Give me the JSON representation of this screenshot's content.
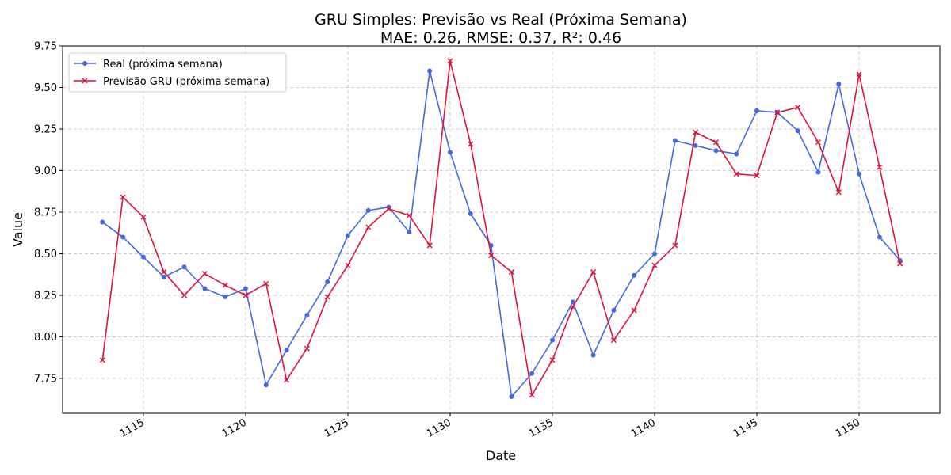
{
  "chart_data": {
    "type": "line",
    "title": "GRU Simples: Previsão vs Real (Próxima Semana)",
    "subtitle": "MAE: 0.26, RMSE: 0.37, R²: 0.46",
    "xlabel": "Date",
    "ylabel": "Value",
    "xlim": [
      1111.05,
      1153.95
    ],
    "ylim": [
      7.54,
      9.75
    ],
    "x_ticks": [
      1115,
      1120,
      1125,
      1130,
      1135,
      1140,
      1145,
      1150
    ],
    "x_tick_labels": [
      "1115",
      "1120",
      "1125",
      "1130",
      "1135",
      "1140",
      "1145",
      "1150"
    ],
    "y_ticks": [
      7.75,
      8.0,
      8.25,
      8.5,
      8.75,
      9.0,
      9.25,
      9.5,
      9.75
    ],
    "y_tick_labels": [
      "7.75",
      "8.00",
      "8.25",
      "8.50",
      "8.75",
      "9.00",
      "9.25",
      "9.50",
      "9.75"
    ],
    "grid": true,
    "legend_position": "top-left",
    "x": [
      1113,
      1114,
      1115,
      1116,
      1117,
      1118,
      1119,
      1120,
      1121,
      1122,
      1123,
      1124,
      1125,
      1126,
      1127,
      1128,
      1129,
      1130,
      1131,
      1132,
      1133,
      1134,
      1135,
      1136,
      1137,
      1138,
      1139,
      1140,
      1141,
      1142,
      1143,
      1144,
      1145,
      1146,
      1147,
      1148,
      1149,
      1150,
      1151,
      1152
    ],
    "series": [
      {
        "name": "Real (próxima semana)",
        "color": "#4169e1",
        "marker": "circle",
        "values": [
          8.69,
          8.6,
          8.48,
          8.36,
          8.42,
          8.29,
          8.24,
          8.29,
          7.71,
          7.92,
          8.13,
          8.33,
          8.61,
          8.76,
          8.78,
          8.63,
          9.6,
          9.11,
          8.74,
          8.55,
          7.64,
          7.78,
          7.98,
          8.21,
          7.89,
          8.16,
          8.37,
          8.5,
          9.18,
          9.15,
          9.12,
          9.1,
          9.36,
          9.35,
          9.24,
          8.99,
          9.52,
          8.98,
          8.6,
          8.46
        ]
      },
      {
        "name": "Previsão GRU (próxima semana)",
        "color": "#dc143c",
        "marker": "x",
        "values": [
          7.86,
          8.84,
          8.72,
          8.39,
          8.25,
          8.38,
          8.31,
          8.25,
          8.32,
          7.74,
          7.93,
          8.24,
          8.43,
          8.66,
          8.77,
          8.73,
          8.55,
          9.66,
          9.16,
          8.49,
          8.39,
          7.65,
          7.86,
          8.18,
          8.39,
          7.98,
          8.16,
          8.43,
          8.55,
          9.23,
          9.17,
          8.98,
          8.97,
          9.35,
          9.38,
          9.17,
          8.87,
          9.58,
          9.02,
          8.44
        ]
      }
    ]
  }
}
